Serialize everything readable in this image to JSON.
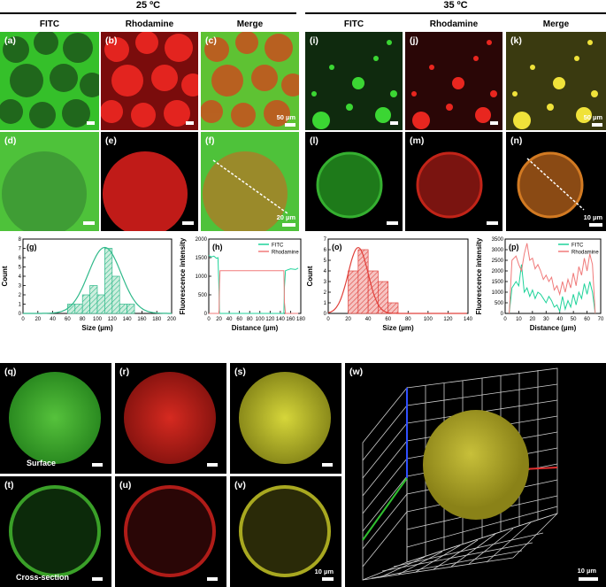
{
  "header": {
    "left": "25 ºC",
    "right": "35 ºC"
  },
  "columns": {
    "fitc": "FITC",
    "rhodamine": "Rhodamine",
    "merge": "Merge"
  },
  "panels": {
    "a": "(a)",
    "b": "(b)",
    "c": "(c)",
    "d": "(d)",
    "e": "(e)",
    "f": "(f)",
    "g": "(g)",
    "h": "(h)",
    "i": "(i)",
    "j": "(j)",
    "k": "(k)",
    "l": "(l)",
    "m": "(m)",
    "n": "(n)",
    "o": "(o)",
    "p": "(p)",
    "q": "(q)",
    "r": "(r)",
    "s": "(s)",
    "t": "(t)",
    "u": "(u)",
    "v": "(v)",
    "w": "(w)"
  },
  "scalebars": {
    "c": "50 µm",
    "f": "20 µm",
    "k": "50 µm",
    "n": "10 µm",
    "v": "10 µm",
    "w": "10 µm"
  },
  "overlay_labels": {
    "surface": "Surface",
    "cross_section": "Cross-section"
  },
  "colors": {
    "fitc": "#1fd39a",
    "rhodamine": "#f07a7a",
    "green_bg": "#3ecb2c",
    "red_bg": "#c81a1a",
    "merge_bg": "#7aa82a"
  },
  "chart_data": [
    {
      "type": "histogram",
      "panel": "(g)",
      "xlabel": "Size (µm)",
      "ylabel": "Count",
      "xlim": [
        0,
        200
      ],
      "ylim": [
        0,
        8
      ],
      "xticks": [
        0,
        20,
        40,
        60,
        80,
        100,
        120,
        140,
        160,
        180,
        200
      ],
      "yticks": [
        0,
        1,
        2,
        3,
        4,
        5,
        6,
        7,
        8
      ],
      "bins": [
        [
          50,
          60,
          0
        ],
        [
          60,
          70,
          1
        ],
        [
          70,
          80,
          1
        ],
        [
          80,
          90,
          2
        ],
        [
          90,
          100,
          3
        ],
        [
          100,
          110,
          2
        ],
        [
          110,
          120,
          7
        ],
        [
          120,
          130,
          4
        ],
        [
          130,
          140,
          1
        ],
        [
          140,
          150,
          1
        ]
      ],
      "fit": {
        "mean": 110,
        "peak": 7.1,
        "sigma": 22
      }
    },
    {
      "type": "line",
      "panel": "(h)",
      "xlabel": "Distance (µm)",
      "ylabel": "Fluorescence intensity",
      "xlim": [
        0,
        180
      ],
      "ylim": [
        0,
        2000
      ],
      "xticks": [
        0,
        20,
        40,
        60,
        80,
        100,
        120,
        140,
        160,
        180
      ],
      "yticks": [
        0,
        500,
        1000,
        1500,
        2000
      ],
      "series": [
        {
          "name": "FITC",
          "x": [
            0,
            5,
            10,
            15,
            18,
            20,
            21,
            22,
            30,
            40,
            50,
            60,
            70,
            80,
            90,
            100,
            110,
            120,
            130,
            140,
            145,
            147,
            148,
            150,
            160,
            170,
            175
          ],
          "y": [
            1560,
            1520,
            1540,
            1480,
            1500,
            600,
            0,
            0,
            0,
            0,
            0,
            0,
            0,
            0,
            0,
            0,
            0,
            0,
            0,
            0,
            0,
            0,
            700,
            1150,
            1200,
            1180,
            1220
          ]
        },
        {
          "name": "Rhodamine",
          "x": [
            0,
            5,
            10,
            15,
            18,
            20,
            21,
            22,
            30,
            40,
            50,
            60,
            70,
            80,
            90,
            100,
            110,
            120,
            130,
            140,
            145,
            147,
            148,
            150,
            160,
            170,
            175
          ],
          "y": [
            0,
            0,
            0,
            0,
            0,
            0,
            800,
            1150,
            1150,
            1150,
            1150,
            1150,
            1150,
            1150,
            1150,
            1150,
            1150,
            1150,
            1150,
            1150,
            1150,
            1150,
            300,
            0,
            0,
            0,
            0
          ]
        }
      ]
    },
    {
      "type": "histogram",
      "panel": "(o)",
      "xlabel": "Size (µm)",
      "ylabel": "Count",
      "xlim": [
        0,
        140
      ],
      "ylim": [
        0,
        7
      ],
      "xticks": [
        0,
        20,
        40,
        60,
        80,
        100,
        120,
        140
      ],
      "yticks": [
        0,
        1,
        2,
        3,
        4,
        5,
        6,
        7
      ],
      "bins": [
        [
          10,
          20,
          0
        ],
        [
          20,
          30,
          4
        ],
        [
          30,
          40,
          6
        ],
        [
          40,
          50,
          4
        ],
        [
          50,
          60,
          3
        ],
        [
          60,
          70,
          1
        ]
      ],
      "fit": {
        "mean": 30,
        "peak": 6.2,
        "sigma": 10
      }
    },
    {
      "type": "line",
      "panel": "(p)",
      "xlabel": "Distance (µm)",
      "ylabel": "Fluorescence intensity",
      "xlim": [
        0,
        70
      ],
      "ylim": [
        0,
        3500
      ],
      "xticks": [
        0,
        10,
        20,
        30,
        40,
        50,
        60,
        70
      ],
      "yticks": [
        0,
        500,
        1000,
        1500,
        2000,
        2500,
        3000,
        3500
      ],
      "series": [
        {
          "name": "FITC",
          "x": [
            3,
            5,
            8,
            10,
            12,
            14,
            16,
            18,
            20,
            22,
            24,
            26,
            28,
            30,
            32,
            34,
            36,
            38,
            40,
            42,
            44,
            46,
            48,
            50,
            52,
            54,
            56,
            58,
            60,
            62,
            64,
            66
          ],
          "y": [
            0,
            1200,
            1500,
            1300,
            2300,
            1000,
            1200,
            800,
            1100,
            700,
            1000,
            900,
            700,
            500,
            800,
            600,
            300,
            400,
            100,
            800,
            200,
            600,
            300,
            900,
            400,
            1000,
            700,
            1400,
            900,
            1500,
            1000,
            0
          ]
        },
        {
          "name": "Rhodamine",
          "x": [
            3,
            5,
            8,
            10,
            12,
            14,
            16,
            18,
            20,
            22,
            24,
            26,
            28,
            30,
            32,
            34,
            36,
            38,
            40,
            42,
            44,
            46,
            48,
            50,
            52,
            54,
            56,
            58,
            60,
            62,
            64,
            66
          ],
          "y": [
            0,
            2500,
            2700,
            2300,
            2000,
            2800,
            3300,
            2500,
            2600,
            2100,
            2300,
            2000,
            1600,
            1800,
            1500,
            1700,
            1100,
            1300,
            900,
            1500,
            1000,
            1600,
            1200,
            1900,
            1300,
            2200,
            1800,
            2600,
            2000,
            2800,
            2300,
            0
          ]
        }
      ]
    }
  ]
}
